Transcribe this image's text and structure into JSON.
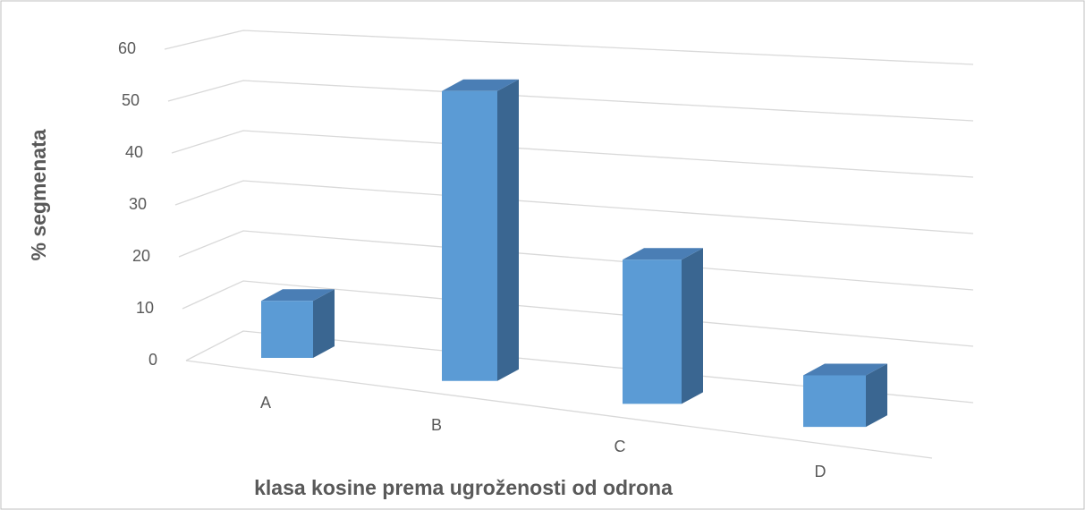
{
  "chart_data": {
    "type": "bar3d",
    "x_label": "klasa kosine prema ugroženosti od odrona",
    "y_label": "% segmenata",
    "categories": [
      "A",
      "B",
      "C",
      "D"
    ],
    "values": [
      11,
      54,
      26,
      9
    ],
    "color": "#5b9bd5",
    "ylim": [
      0,
      60
    ],
    "yticks": [
      0,
      10,
      20,
      30,
      40,
      50,
      60
    ],
    "grid": true
  }
}
